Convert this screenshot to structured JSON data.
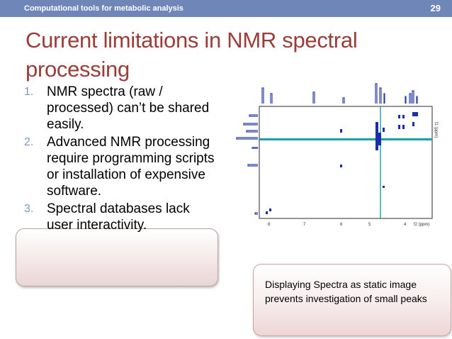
{
  "header": {
    "section_title": "Computational tools for metabolic analysis",
    "slide_number": "29"
  },
  "title": "Current limitations in NMR spectral processing",
  "limitations": [
    {
      "num": "1.",
      "text": "NMR spectra (raw / processed) can’t be shared easily."
    },
    {
      "num": "2.",
      "text": "Advanced NMR processing require programming scripts or installation of expensive software."
    },
    {
      "num": "3.",
      "text": "Spectral databases lack user interactivity."
    }
  ],
  "spectrum": {
    "axis_ticks": [
      "8",
      "7",
      "6",
      "5",
      "4",
      "f2 (ppm)"
    ],
    "side_axis_label": "f1 (ppm)",
    "colors": {
      "frame": "#2b2b2b",
      "contour": "#1a2fa8",
      "diagonal": "#1aa1a0",
      "trace": "#2a3ea8"
    }
  },
  "callout": {
    "text": "Displaying Spectra as static image prevents investigation of small peaks"
  },
  "colors": {
    "header_bar": "#6f86b9",
    "title": "#9b3c39",
    "list_number": "#7f94c2"
  }
}
